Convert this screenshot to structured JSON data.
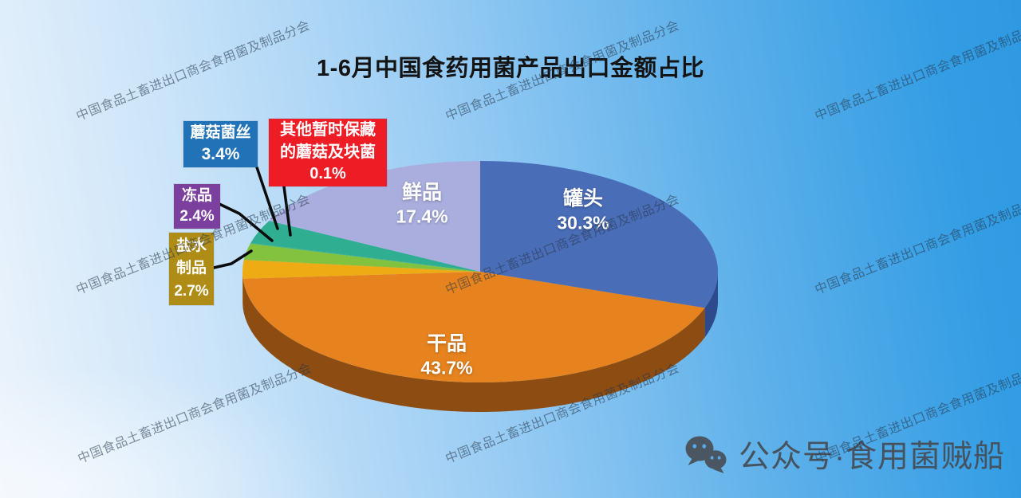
{
  "title": "1-6月中国食药用菌产品出口金额占比",
  "watermark": {
    "text": "中国食品土畜进出口商会食用菌及制品分会"
  },
  "footer": {
    "wechat_label": "公众号·食用菌贼船"
  },
  "colors": {
    "background_top_left": "#cfe6fb",
    "background_bottom_right": "#2f9ce4",
    "leader_line": "#0b0b0b",
    "title_text": "#141414",
    "footer_text": "#46535f"
  },
  "chart_data": {
    "type": "pie",
    "title": "1-6月中国食药用菌产品出口金额占比",
    "unit": "percent",
    "style": "3d-pie",
    "start_angle_deg": 0,
    "direction": "clockwise",
    "slices": [
      {
        "label": "罐头",
        "value": 30.3,
        "color": "#4a6db8",
        "side_color": "#2d4a8c"
      },
      {
        "label": "干品",
        "value": 43.7,
        "color": "#e6831e",
        "side_color": "#8c4c12"
      },
      {
        "label": "盐水制品",
        "value": 2.7,
        "color": "#eeab14",
        "side_color": "#a5780c"
      },
      {
        "label": "冻品",
        "value": 2.4,
        "color": "#82c23e",
        "side_color": "#55852a"
      },
      {
        "label": "其他暂时保藏的蘑菇及块菌",
        "value": 0.1,
        "color": "#2fae92",
        "side_color": "#1f7a66"
      },
      {
        "label": "蘑菇菌丝",
        "value": 3.4,
        "color": "#2fae92",
        "side_color": "#1f7a66"
      },
      {
        "label": "鲜品",
        "value": 17.4,
        "color": "#a9aede",
        "side_color": "#7a80bd"
      }
    ]
  },
  "pie_labels": [
    {
      "line1": "罐头",
      "line2": "30.3%"
    },
    {
      "line1": "干品",
      "line2": "43.7%"
    },
    {
      "line1": "鲜品",
      "line2": "17.4%"
    }
  ],
  "callouts": [
    {
      "bg": "#2272b8",
      "line1": "蘑菇菌丝",
      "line2": "3.4%"
    },
    {
      "bg": "#ee1c25",
      "line1": "其他暂时保藏",
      "line2": "的蘑菇及块菌",
      "line3": "0.1%"
    },
    {
      "bg": "#7b3f9e",
      "line1": "冻品",
      "line2": "2.4%"
    },
    {
      "bg": "#ae8c15",
      "line1": "盐水",
      "line2": "制品",
      "line3": "2.7%"
    }
  ]
}
